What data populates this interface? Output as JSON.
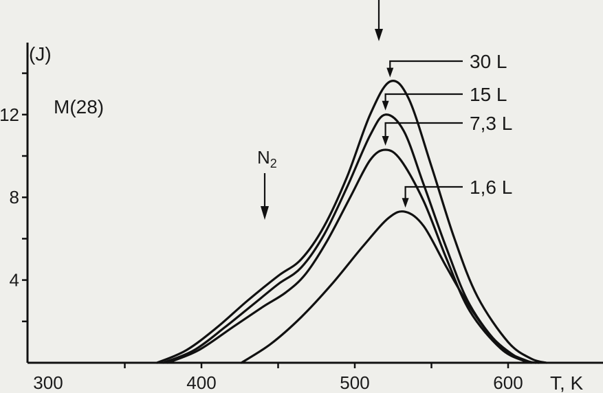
{
  "chart_data": {
    "type": "line",
    "title": "",
    "xlabel": "T, K",
    "ylabel": "(J)",
    "signal_label": "M(28)",
    "xlim": [
      300,
      630
    ],
    "ylim": [
      0,
      15
    ],
    "x_ticks": [
      300,
      400,
      500,
      600
    ],
    "x_tick_labels": [
      "300",
      "400",
      "500",
      "600"
    ],
    "y_ticks": [
      4,
      8,
      12
    ],
    "y_tick_labels": [
      "4",
      "8",
      "12"
    ],
    "grid": false,
    "series": [
      {
        "name": "30 L",
        "peak_x": 523,
        "points": [
          [
            371,
            0
          ],
          [
            390,
            0.6
          ],
          [
            410,
            1.7
          ],
          [
            430,
            3.0
          ],
          [
            450,
            4.2
          ],
          [
            465,
            5.0
          ],
          [
            480,
            6.6
          ],
          [
            495,
            9.0
          ],
          [
            510,
            12.0
          ],
          [
            523,
            13.6
          ],
          [
            535,
            12.8
          ],
          [
            550,
            9.5
          ],
          [
            565,
            6.0
          ],
          [
            580,
            3.2
          ],
          [
            600,
            1.0
          ],
          [
            615,
            0.2
          ],
          [
            625,
            0
          ]
        ]
      },
      {
        "name": "15 L",
        "peak_x": 520,
        "points": [
          [
            375,
            0
          ],
          [
            395,
            0.6
          ],
          [
            415,
            1.7
          ],
          [
            435,
            2.9
          ],
          [
            450,
            3.8
          ],
          [
            465,
            4.6
          ],
          [
            480,
            6.2
          ],
          [
            495,
            8.5
          ],
          [
            510,
            11.0
          ],
          [
            520,
            12.0
          ],
          [
            532,
            11.2
          ],
          [
            545,
            8.6
          ],
          [
            560,
            5.5
          ],
          [
            575,
            2.8
          ],
          [
            595,
            0.8
          ],
          [
            612,
            0.1
          ],
          [
            620,
            0
          ]
        ]
      },
      {
        "name": "7,3 L",
        "peak_x": 520,
        "points": [
          [
            378,
            0
          ],
          [
            398,
            0.6
          ],
          [
            420,
            1.7
          ],
          [
            440,
            2.7
          ],
          [
            455,
            3.4
          ],
          [
            468,
            4.3
          ],
          [
            482,
            5.9
          ],
          [
            497,
            8.0
          ],
          [
            510,
            9.8
          ],
          [
            520,
            10.3
          ],
          [
            530,
            9.8
          ],
          [
            545,
            7.8
          ],
          [
            560,
            5.0
          ],
          [
            575,
            2.5
          ],
          [
            595,
            0.7
          ],
          [
            610,
            0.1
          ],
          [
            618,
            0
          ]
        ]
      },
      {
        "name": "1,6 L",
        "peak_x": 533,
        "points": [
          [
            426,
            0
          ],
          [
            445,
            0.9
          ],
          [
            465,
            2.2
          ],
          [
            485,
            3.8
          ],
          [
            505,
            5.6
          ],
          [
            522,
            7.0
          ],
          [
            533,
            7.3
          ],
          [
            545,
            6.6
          ],
          [
            560,
            4.6
          ],
          [
            575,
            2.7
          ],
          [
            590,
            1.2
          ],
          [
            605,
            0.3
          ],
          [
            615,
            0
          ]
        ]
      }
    ],
    "annotations": [
      {
        "label": "N",
        "subscript": "2",
        "x": 443
      },
      {
        "label": "",
        "x": 521,
        "note": "top peak arrow"
      }
    ]
  }
}
